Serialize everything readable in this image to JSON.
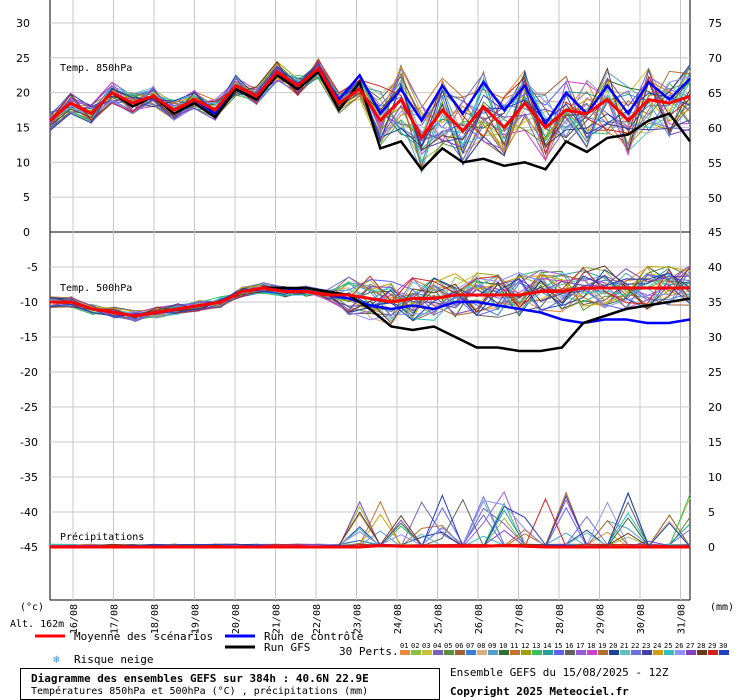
{
  "chart_data": {
    "type": "line",
    "dates": [
      "16/08",
      "17/08",
      "18/08",
      "19/08",
      "20/08",
      "21/08",
      "22/08",
      "23/08",
      "24/08",
      "25/08",
      "26/08",
      "27/08",
      "28/08",
      "29/08",
      "30/08",
      "31/08"
    ],
    "t850": {
      "label": "Temp. 850hPa",
      "ylim": [
        0,
        30
      ],
      "left_ticks": [
        "30",
        "25",
        "20",
        "15",
        "10",
        "5",
        "0"
      ],
      "right_ticks": [
        "75",
        "70",
        "65",
        "60",
        "55",
        "50"
      ],
      "mean": [
        16,
        18.5,
        17,
        20,
        18.5,
        19.5,
        17.5,
        19,
        17.5,
        21,
        19.5,
        23,
        21,
        23.5,
        18.5,
        20.5,
        16,
        19,
        13.5,
        17.5,
        14.5,
        18,
        15,
        18.5,
        15,
        17.5,
        17,
        19,
        16,
        19,
        18.5,
        19.5
      ],
      "control": [
        16,
        18.5,
        17,
        20,
        18.5,
        19.5,
        17.5,
        19,
        17,
        20.5,
        19,
        22.5,
        21,
        23,
        19,
        22.5,
        17,
        20.5,
        16,
        21,
        17,
        21.5,
        17.5,
        21,
        15.5,
        20,
        17,
        21,
        17,
        21.5,
        19,
        22
      ],
      "gfs": [
        16,
        18.5,
        17,
        20,
        18,
        19.5,
        17,
        18.5,
        16.5,
        20.5,
        19,
        22.5,
        20.5,
        23,
        17.5,
        21.5,
        12,
        13,
        9,
        12,
        10,
        10.5,
        9.5,
        10,
        9,
        13,
        11.5,
        13.5,
        14,
        16,
        17,
        13
      ]
    },
    "t500": {
      "label": "Temp. 500hPa",
      "left_ticks": [
        "-5",
        "-10",
        "-15",
        "-20",
        "-25",
        "-30",
        "-35",
        "-40",
        "-45"
      ],
      "right_ticks": [
        "45",
        "40",
        "35",
        "30",
        "25",
        "20",
        "15",
        "10",
        "5",
        "0"
      ],
      "mean": [
        -10,
        -10,
        -11,
        -11.5,
        -12,
        -11.5,
        -11,
        -10.5,
        -10,
        -8.5,
        -8,
        -8.5,
        -8.5,
        -9,
        -9,
        -9.5,
        -10,
        -9.5,
        -9.5,
        -9,
        -9,
        -9,
        -9,
        -8.5,
        -8.5,
        -8,
        -8,
        -8,
        -8,
        -8,
        -8
      ],
      "control": [
        -10,
        -10,
        -11,
        -11.5,
        -12,
        -11.5,
        -11,
        -10.5,
        -10,
        -8.5,
        -8,
        -8,
        -8.5,
        -9,
        -9.5,
        -10.5,
        -11,
        -10.5,
        -11,
        -10,
        -10,
        -10.5,
        -11,
        -11.5,
        -12.5,
        -13,
        -12.5,
        -12.5,
        -13,
        -13,
        -12.5
      ],
      "gfs": [
        -10,
        -10,
        -11,
        -11.5,
        -12,
        -11.5,
        -11,
        -10.5,
        -10,
        -8.5,
        -8,
        -8,
        -8,
        -8.5,
        -9,
        -11,
        -13.5,
        -14,
        -13.5,
        -15,
        -16.5,
        -16.5,
        -17,
        -17,
        -16.5,
        -13,
        -12,
        -11,
        -10.5,
        -10,
        -9.5
      ]
    },
    "precip": {
      "label": "Précipitations",
      "mean": [
        0,
        0,
        0,
        0,
        0,
        0,
        0,
        0,
        0,
        0,
        0,
        0,
        0,
        0,
        0,
        0,
        0.2,
        0.1,
        0.1,
        0.1,
        0.1,
        0.1,
        0.2,
        0.1,
        0,
        0,
        0,
        0,
        0,
        0,
        0,
        0
      ]
    },
    "axis_units_left": "(°c)",
    "axis_units_right": "(mm)",
    "altitude": "Alt. 162m"
  },
  "legend": {
    "mean": {
      "label": "Moyenne des scénarios",
      "color": "#ff0000"
    },
    "control": {
      "label": "Run de contrôle",
      "color": "#0000ff"
    },
    "gfs": {
      "label": "Run GFS",
      "color": "#000000"
    },
    "snow": {
      "label": "Risque neige",
      "icon": "snowflake-icon",
      "color": "#3a8ee6"
    },
    "perts_label": "30 Perts.",
    "members": [
      "01",
      "02",
      "03",
      "04",
      "05",
      "06",
      "07",
      "08",
      "09",
      "10",
      "11",
      "12",
      "13",
      "14",
      "15",
      "16",
      "17",
      "18",
      "19",
      "20",
      "21",
      "22",
      "23",
      "24",
      "25",
      "26",
      "27",
      "28",
      "29",
      "30"
    ],
    "member_colors": [
      "#e88a3a",
      "#8fbf3f",
      "#c7c23a",
      "#7b5fbf",
      "#5a8f3c",
      "#a06030",
      "#3a7fd6",
      "#d6b07a",
      "#52a0d0",
      "#2f6f2f",
      "#c87030",
      "#a0a000",
      "#38c060",
      "#28a0a0",
      "#6060ff",
      "#606060",
      "#9a5ad6",
      "#d040d0",
      "#b07030",
      "#204090",
      "#60c0c0",
      "#7070e0",
      "#4040a0",
      "#d0a000",
      "#30c0c0",
      "#9090ff",
      "#8040c0",
      "#6a3a1a",
      "#d02020",
      "#2040c0"
    ]
  },
  "footer": {
    "title": "Diagramme des ensembles GEFS sur 384h : 40.6N 22.9E",
    "subtitle": "Températures 850hPa et 500hPa (°C) , précipitations (mm)",
    "run_info": "Ensemble GEFS du 15/08/2025 - 12Z",
    "copyright": "Copyright 2025 Meteociel.fr"
  }
}
